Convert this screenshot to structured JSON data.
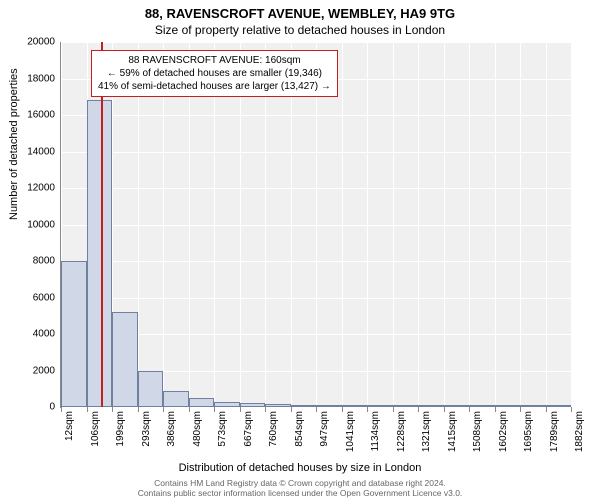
{
  "title": "88, RAVENSCROFT AVENUE, WEMBLEY, HA9 9TG",
  "subtitle": "Size of property relative to detached houses in London",
  "ylabel": "Number of detached properties",
  "xlabel": "Distribution of detached houses by size in London",
  "footer_line1": "Contains HM Land Registry data © Crown copyright and database right 2024.",
  "footer_line2": "Contains public sector information licensed under the Open Government Licence v3.0.",
  "chart": {
    "type": "histogram",
    "background_color": "#f0f0f0",
    "grid_color": "#ffffff",
    "axis_color": "#888888",
    "bar_fill": "#d0d8e8",
    "bar_stroke": "#7080a0",
    "marker_color": "#c02020",
    "ylim": [
      0,
      20000
    ],
    "ytick_step": 2000,
    "yticks": [
      0,
      2000,
      4000,
      6000,
      8000,
      10000,
      12000,
      14000,
      16000,
      18000,
      20000
    ],
    "xticks": [
      "12sqm",
      "106sqm",
      "199sqm",
      "293sqm",
      "386sqm",
      "480sqm",
      "573sqm",
      "667sqm",
      "760sqm",
      "854sqm",
      "947sqm",
      "1041sqm",
      "1134sqm",
      "1228sqm",
      "1321sqm",
      "1415sqm",
      "1508sqm",
      "1602sqm",
      "1695sqm",
      "1789sqm",
      "1882sqm"
    ],
    "bars": [
      {
        "x0": 12,
        "x1": 106,
        "value": 8000
      },
      {
        "x0": 106,
        "x1": 199,
        "value": 16800
      },
      {
        "x0": 199,
        "x1": 293,
        "value": 5200
      },
      {
        "x0": 293,
        "x1": 386,
        "value": 2000
      },
      {
        "x0": 386,
        "x1": 480,
        "value": 900
      },
      {
        "x0": 480,
        "x1": 573,
        "value": 500
      },
      {
        "x0": 573,
        "x1": 667,
        "value": 300
      },
      {
        "x0": 667,
        "x1": 760,
        "value": 200
      },
      {
        "x0": 760,
        "x1": 854,
        "value": 150
      },
      {
        "x0": 854,
        "x1": 947,
        "value": 100
      },
      {
        "x0": 947,
        "x1": 1041,
        "value": 60
      },
      {
        "x0": 1041,
        "x1": 1134,
        "value": 40
      },
      {
        "x0": 1134,
        "x1": 1228,
        "value": 30
      },
      {
        "x0": 1228,
        "x1": 1321,
        "value": 20
      },
      {
        "x0": 1321,
        "x1": 1415,
        "value": 15
      },
      {
        "x0": 1415,
        "x1": 1508,
        "value": 10
      },
      {
        "x0": 1508,
        "x1": 1602,
        "value": 8
      },
      {
        "x0": 1602,
        "x1": 1695,
        "value": 5
      },
      {
        "x0": 1695,
        "x1": 1789,
        "value": 3
      },
      {
        "x0": 1789,
        "x1": 1882,
        "value": 2
      }
    ],
    "xlim": [
      12,
      1882
    ],
    "marker_x": 160,
    "tick_fontsize": 10,
    "label_fontsize": 11,
    "title_fontsize": 13
  },
  "annotation": {
    "border_color": "#c02020",
    "lines": [
      "88 RAVENSCROFT AVENUE: 160sqm",
      "← 59% of detached houses are smaller (19,346)",
      "41% of semi-detached houses are larger (13,427) →"
    ]
  }
}
